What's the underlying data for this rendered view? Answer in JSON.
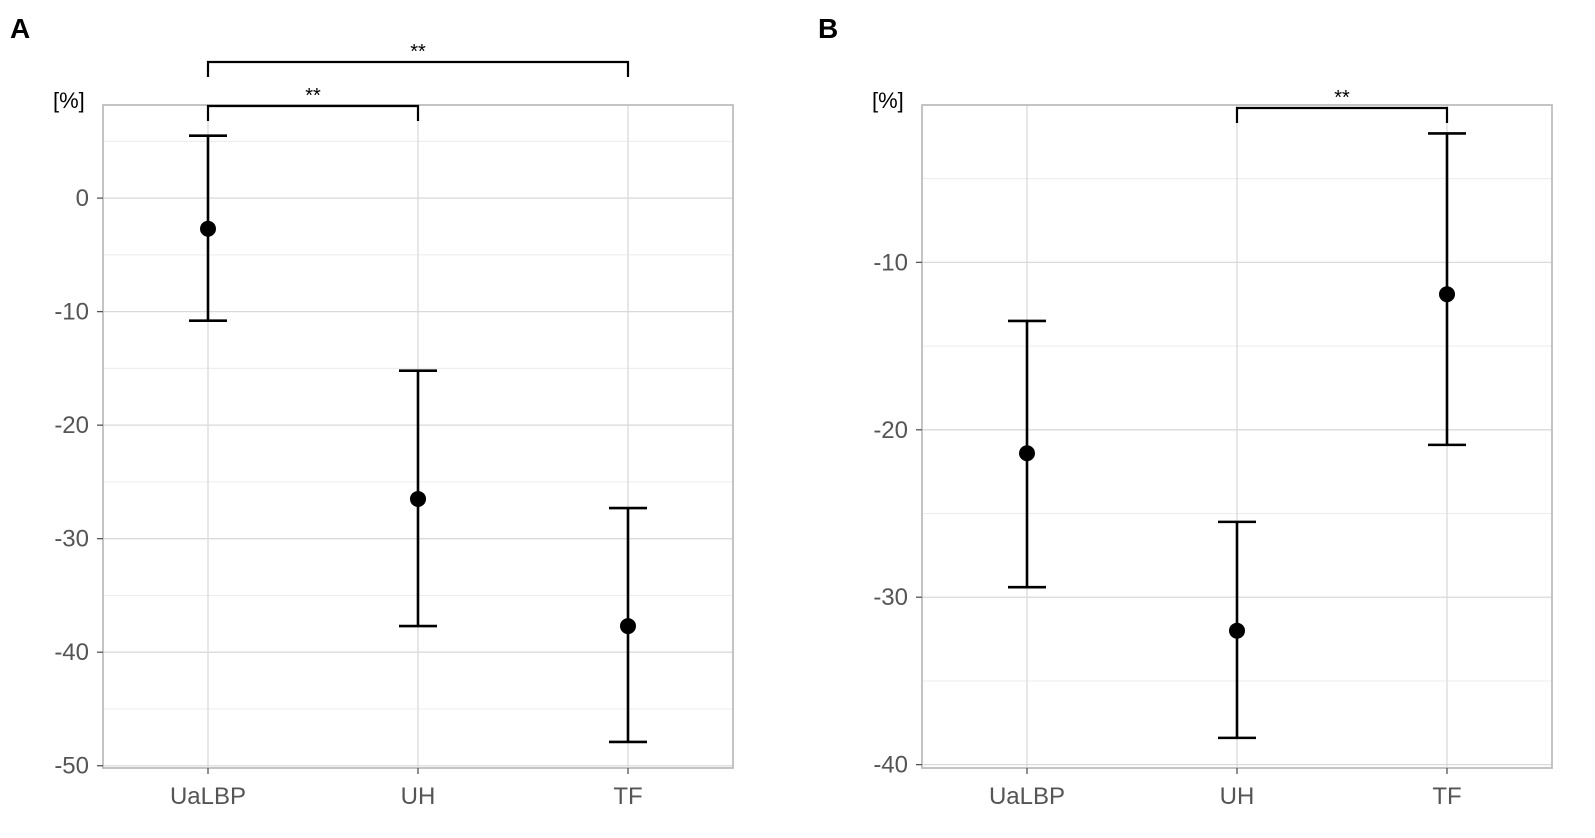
{
  "chart_data": [
    {
      "panel_label": "A",
      "type": "scatter",
      "unit_label": "[%]",
      "categories": [
        "UaLBP",
        "UH",
        "TF"
      ],
      "points": [
        {
          "category": "UaLBP",
          "mean": -2.7,
          "lower": -10.8,
          "upper": 5.5
        },
        {
          "category": "UH",
          "mean": -26.5,
          "lower": -37.7,
          "upper": -15.2
        },
        {
          "category": "TF",
          "mean": -37.7,
          "lower": -47.9,
          "upper": -27.3
        }
      ],
      "ylim": [
        -50.2,
        8.2
      ],
      "y_ticks": [
        0,
        -10,
        -20,
        -30,
        -40,
        -50
      ],
      "y_tick_labels": [
        "0",
        "-10",
        "-20",
        "-30",
        "-40",
        "-50"
      ],
      "grid": true,
      "significance": [
        {
          "from": "UaLBP",
          "to": "UH",
          "label": "**"
        },
        {
          "from": "UaLBP",
          "to": "TF",
          "label": "**"
        }
      ]
    },
    {
      "panel_label": "B",
      "type": "scatter",
      "unit_label": "[%]",
      "categories": [
        "UaLBP",
        "UH",
        "TF"
      ],
      "points": [
        {
          "category": "UaLBP",
          "mean": -21.4,
          "lower": -29.4,
          "upper": -13.5
        },
        {
          "category": "UH",
          "mean": -32.0,
          "lower": -38.4,
          "upper": -25.5
        },
        {
          "category": "TF",
          "mean": -11.9,
          "lower": -20.9,
          "upper": -2.3
        }
      ],
      "ylim": [
        -40.2,
        -0.6
      ],
      "y_ticks": [
        -10,
        -20,
        -30,
        -40
      ],
      "y_tick_labels": [
        "-10",
        "-20",
        "-30",
        "-40"
      ],
      "grid": true,
      "significance": [
        {
          "from": "UH",
          "to": "TF",
          "label": "**"
        }
      ]
    }
  ]
}
